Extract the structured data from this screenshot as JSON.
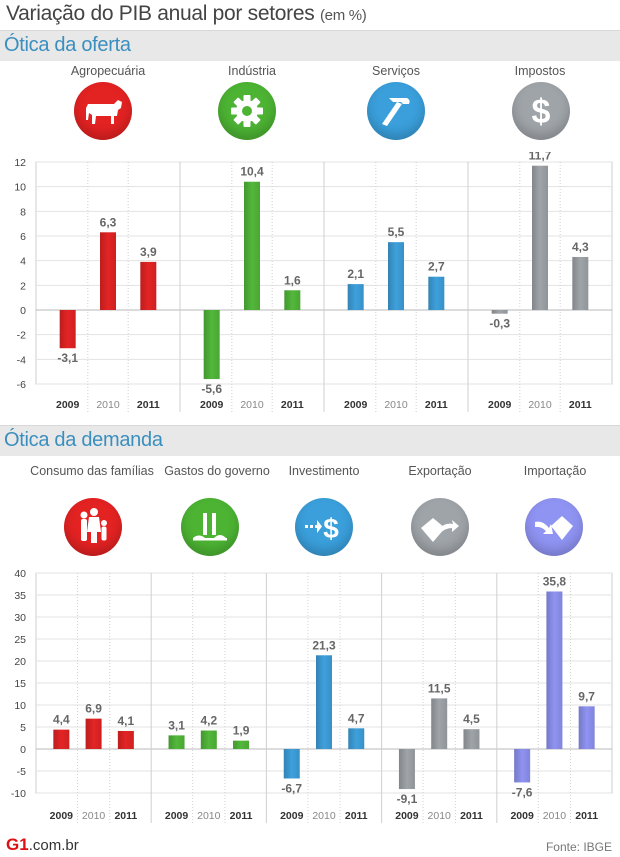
{
  "header": {
    "title": "Variação do PIB anual por setores",
    "unit": "(em %)"
  },
  "sections": {
    "oferta": {
      "title": "Ótica da oferta"
    },
    "demanda": {
      "title": "Ótica da demanda"
    }
  },
  "icons": {
    "agro": "cow-icon",
    "industria": "gear-icon",
    "servicos": "hammer-icon",
    "impostos": "dollar-icon",
    "consumo": "family-icon",
    "governo": "government-building-icon",
    "investimento": "dollar-arrow-icon",
    "exportacao": "export-arrow-icon",
    "importacao": "import-arrow-icon"
  },
  "chart_data": [
    {
      "type": "bar",
      "ylim": [
        -6,
        12
      ],
      "yticks": [
        "12",
        "10",
        "8",
        "6",
        "4",
        "2",
        "0",
        "-2",
        "-4",
        "-6"
      ],
      "grid": true,
      "categories": [
        "2009",
        "2010",
        "2011"
      ],
      "groups": [
        {
          "name": "Agropecuária",
          "values": [
            -3.1,
            6.3,
            3.9
          ],
          "labels": [
            "-3,1",
            "6,3",
            "3,9"
          ],
          "color": "#e42424"
        },
        {
          "name": "Indústria",
          "values": [
            -5.6,
            10.4,
            1.6
          ],
          "labels": [
            "-5,6",
            "10,4",
            "1,6"
          ],
          "color": "#52b83a"
        },
        {
          "name": "Serviços",
          "values": [
            2.1,
            5.5,
            2.7
          ],
          "labels": [
            "2,1",
            "5,5",
            "2,7"
          ],
          "color": "#3ea0dc"
        },
        {
          "name": "Impostos",
          "values": [
            -0.3,
            11.7,
            4.3
          ],
          "labels": [
            "-0,3",
            "11,7",
            "4,3"
          ],
          "color": "#9fa4a9"
        }
      ]
    },
    {
      "type": "bar",
      "ylim": [
        -10,
        40
      ],
      "yticks": [
        "40",
        "35",
        "30",
        "25",
        "20",
        "15",
        "10",
        "5",
        "0",
        "-5",
        "-10"
      ],
      "grid": true,
      "categories": [
        "2009",
        "2010",
        "2011"
      ],
      "groups": [
        {
          "name": "Consumo das famílias",
          "values": [
            4.4,
            6.9,
            4.1
          ],
          "labels": [
            "4,4",
            "6,9",
            "4,1"
          ],
          "color": "#e42424"
        },
        {
          "name": "Gastos do governo",
          "values": [
            3.1,
            4.2,
            1.9
          ],
          "labels": [
            "3,1",
            "4,2",
            "1,9"
          ],
          "color": "#52b83a"
        },
        {
          "name": "Investimento",
          "values": [
            -6.7,
            21.3,
            4.7
          ],
          "labels": [
            "-6,7",
            "21,3",
            "4,7"
          ],
          "color": "#3ea0dc"
        },
        {
          "name": "Exportação",
          "values": [
            -9.1,
            11.5,
            4.5
          ],
          "labels": [
            "-9,1",
            "11,5",
            "4,5"
          ],
          "color": "#9fa4a9"
        },
        {
          "name": "Importação",
          "values": [
            -7.6,
            35.8,
            9.7
          ],
          "labels": [
            "-7,6",
            "35,8",
            "9,7"
          ],
          "color": "#8f93f2"
        }
      ]
    }
  ],
  "footer": {
    "logo_g": "G1",
    "logo_domain": ".com.br",
    "source": "Fonte: IBGE"
  }
}
